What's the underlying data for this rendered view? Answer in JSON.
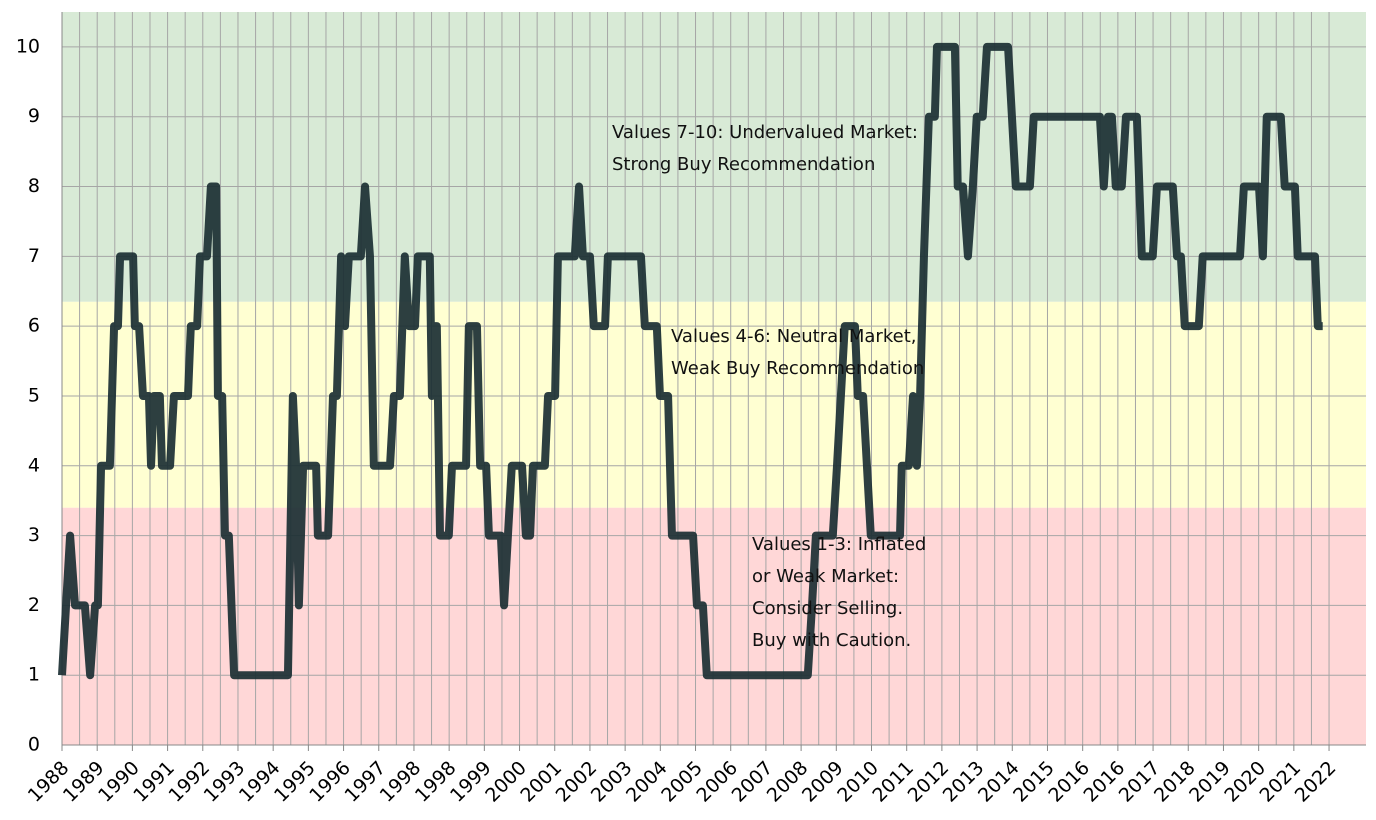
{
  "chart_data": {
    "type": "line",
    "categories": null,
    "xlim": [
      0,
      37.05
    ],
    "xticks": [
      {
        "value": 0,
        "label": "1988"
      },
      {
        "value": 1,
        "label": "1989"
      },
      {
        "value": 2,
        "label": "1990"
      },
      {
        "value": 3,
        "label": "1991"
      },
      {
        "value": 4,
        "label": "1992"
      },
      {
        "value": 5,
        "label": "1993"
      },
      {
        "value": 6,
        "label": "1994"
      },
      {
        "value": 7,
        "label": "1995"
      },
      {
        "value": 8,
        "label": "1996"
      },
      {
        "value": 9,
        "label": "1997"
      },
      {
        "value": 10,
        "label": "1998"
      },
      {
        "value": 11,
        "label": "1998"
      },
      {
        "value": 12,
        "label": "1999"
      },
      {
        "value": 13,
        "label": "2000"
      },
      {
        "value": 14,
        "label": "2001"
      },
      {
        "value": 15,
        "label": "2002"
      },
      {
        "value": 16,
        "label": "2003"
      },
      {
        "value": 17,
        "label": "2004"
      },
      {
        "value": 18,
        "label": "2005"
      },
      {
        "value": 19,
        "label": "2006"
      },
      {
        "value": 20,
        "label": "2007"
      },
      {
        "value": 21,
        "label": "2008"
      },
      {
        "value": 22,
        "label": "2009"
      },
      {
        "value": 23,
        "label": "2010"
      },
      {
        "value": 24,
        "label": "2011"
      },
      {
        "value": 25,
        "label": "2012"
      },
      {
        "value": 26,
        "label": "2013"
      },
      {
        "value": 27,
        "label": "2014"
      },
      {
        "value": 28,
        "label": "2015"
      },
      {
        "value": 29,
        "label": "2016"
      },
      {
        "value": 30,
        "label": "2016"
      },
      {
        "value": 31,
        "label": "2017"
      },
      {
        "value": 32,
        "label": "2018"
      },
      {
        "value": 33,
        "label": "2019"
      },
      {
        "value": 34,
        "label": "2020"
      },
      {
        "value": 35,
        "label": "2021"
      },
      {
        "value": 36,
        "label": "2022"
      }
    ],
    "ylim": [
      0,
      10.5
    ],
    "yticks": [
      0,
      1,
      2,
      3,
      4,
      5,
      6,
      7,
      8,
      9,
      10
    ],
    "grid": true,
    "bands": [
      {
        "from": 0,
        "to": 3.4,
        "color": "#ffd7d7"
      },
      {
        "from": 3.4,
        "to": 6.35,
        "color": "#ffffd2"
      },
      {
        "from": 6.35,
        "to": 10.5,
        "color": "#d8ead6"
      }
    ],
    "annotations": [
      [
        "Values 7-10: Undervalued Market:",
        "Strong Buy Recommendation"
      ],
      [
        "Values 4-6: Neutral Market,",
        "Weak Buy Recommendation"
      ],
      [
        "Values 1-3: Inflated",
        "or Weak Market:",
        "Consider Selling.",
        "Buy with Caution."
      ]
    ],
    "series": [
      {
        "color": "#1b2f33",
        "x": [
          0,
          0.23,
          0.37,
          0.65,
          0.8,
          0.94,
          1.02,
          1.11,
          1.36,
          1.48,
          1.59,
          1.65,
          2.02,
          2.07,
          2.19,
          2.3,
          2.47,
          2.53,
          2.61,
          2.78,
          2.84,
          3.07,
          3.18,
          3.58,
          3.66,
          3.84,
          3.92,
          4.12,
          4.23,
          4.38,
          4.43,
          4.55,
          4.63,
          4.74,
          4.89,
          6.42,
          6.56,
          6.65,
          6.73,
          6.85,
          7.22,
          7.27,
          7.56,
          7.7,
          7.81,
          7.93,
          8.04,
          8.15,
          8.49,
          8.61,
          8.75,
          8.86,
          9.32,
          9.43,
          9.6,
          9.74,
          9.86,
          10.03,
          10.11,
          10.45,
          10.51,
          10.57,
          10.65,
          10.74,
          10.99,
          11.08,
          11.48,
          11.56,
          11.79,
          11.88,
          12.05,
          12.13,
          12.47,
          12.56,
          12.67,
          12.78,
          13.07,
          13.18,
          13.3,
          13.38,
          13.72,
          13.81,
          14.01,
          14.09,
          14.57,
          14.69,
          14.8,
          15.0,
          15.11,
          15.43,
          15.51,
          16.45,
          16.56,
          16.9,
          16.99,
          17.22,
          17.33,
          17.93,
          18.04,
          18.21,
          18.32,
          21.19,
          21.31,
          21.42,
          21.9,
          22.02,
          22.13,
          22.24,
          22.53,
          22.61,
          22.76,
          22.87,
          22.98,
          23.81,
          23.86,
          24.06,
          24.18,
          24.29,
          24.38,
          24.49,
          24.63,
          24.8,
          24.86,
          25.37,
          25.45,
          25.6,
          25.74,
          25.88,
          25.99,
          26.16,
          26.28,
          26.88,
          26.99,
          27.1,
          27.5,
          27.61,
          29.49,
          29.6,
          29.72,
          29.83,
          29.94,
          30.11,
          30.23,
          30.54,
          30.68,
          30.99,
          31.11,
          31.56,
          31.68,
          31.79,
          31.9,
          32.3,
          32.41,
          33.47,
          33.58,
          34.01,
          34.12,
          34.23,
          34.63,
          34.74,
          35.03,
          35.11,
          35.6,
          35.68,
          35.82
        ],
        "values": [
          1,
          3,
          2,
          2,
          1,
          2,
          2,
          4,
          4,
          6,
          6,
          7,
          7,
          6,
          6,
          5,
          5,
          4,
          5,
          5,
          4,
          4,
          5,
          5,
          6,
          6,
          7,
          7,
          8,
          8,
          5,
          5,
          3,
          3,
          1,
          1,
          5,
          4,
          2,
          4,
          4,
          3,
          3,
          5,
          5,
          7,
          6,
          7,
          7,
          8,
          7,
          4,
          4,
          5,
          5,
          7,
          6,
          6,
          7,
          7,
          5,
          6,
          6,
          3,
          3,
          4,
          4,
          6,
          6,
          4,
          4,
          3,
          3,
          2,
          3,
          4,
          4,
          3,
          3,
          4,
          4,
          5,
          5,
          7,
          7,
          8,
          7,
          7,
          6,
          6,
          7,
          7,
          6,
          6,
          5,
          5,
          3,
          3,
          2,
          2,
          1,
          1,
          2,
          3,
          3,
          4,
          5,
          6,
          6,
          5,
          5,
          4,
          3,
          3,
          4,
          4,
          5,
          4,
          5,
          7,
          9,
          9,
          10,
          10,
          8,
          8,
          7,
          8,
          9,
          9,
          10,
          10,
          9,
          8,
          8,
          9,
          9,
          8,
          9,
          9,
          8,
          8,
          9,
          9,
          7,
          7,
          8,
          8,
          7,
          7,
          6,
          6,
          7,
          7,
          8,
          8,
          7,
          9,
          9,
          8,
          8,
          7,
          7,
          6,
          6
        ]
      }
    ]
  }
}
